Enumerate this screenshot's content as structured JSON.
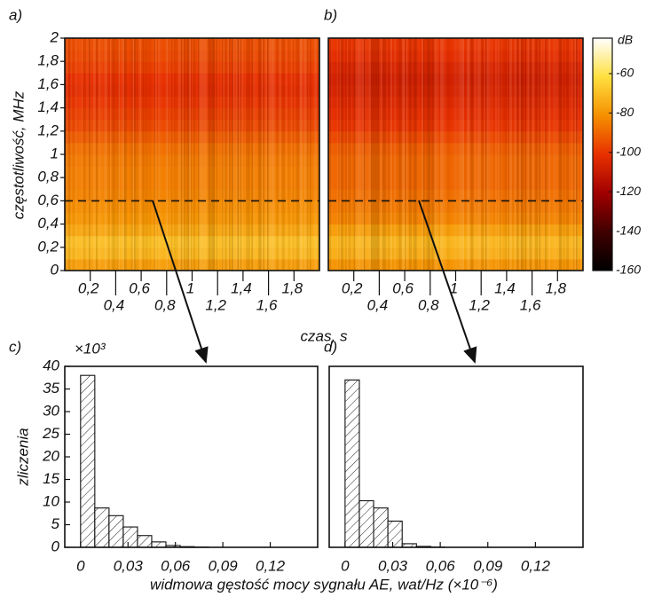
{
  "chart_data": [
    {
      "type": "spectrogram",
      "panel_label": "a)",
      "xlabel": "czas, s",
      "ylabel": "częstotliwość, MHz",
      "xlim": [
        0,
        2
      ],
      "xticks": [
        {
          "value": 0.2,
          "label": "0,2"
        },
        {
          "value": 0.4,
          "label": "0,4"
        },
        {
          "value": 0.6,
          "label": "0,6"
        },
        {
          "value": 0.8,
          "label": "0,8"
        },
        1,
        {
          "value": 1.2,
          "label": "1,2"
        },
        {
          "value": 1.4,
          "label": "1,4"
        },
        {
          "value": 1.6,
          "label": "1,6"
        },
        {
          "value": 1.8,
          "label": "1,8"
        }
      ],
      "ylim": [
        0,
        2
      ],
      "yticks": [
        0,
        {
          "value": 0.2,
          "label": "0,2"
        },
        {
          "value": 0.4,
          "label": "0,4"
        },
        {
          "value": 0.6,
          "label": "0,6"
        },
        {
          "value": 0.8,
          "label": "0,8"
        },
        1,
        {
          "value": 1.2,
          "label": "1,2"
        },
        {
          "value": 1.4,
          "label": "1,4"
        },
        {
          "value": 1.6,
          "label": "1,6"
        },
        {
          "value": 1.8,
          "label": "1,8"
        },
        2
      ],
      "y_bins": [
        0,
        0.1,
        0.2,
        0.3,
        0.4,
        0.5,
        0.6,
        0.7,
        0.8,
        0.9,
        1.0,
        1.1,
        1.2,
        1.3,
        1.4,
        1.5,
        1.6,
        1.7,
        1.8,
        1.9,
        2.0
      ],
      "levels": [
        -78,
        -72,
        -70,
        -76,
        -80,
        -82,
        -84,
        -85,
        -85,
        -86,
        -88,
        -92,
        -96,
        -98,
        -100,
        -102,
        -101,
        -98,
        -96,
        -95
      ],
      "hline": 0.6
    },
    {
      "type": "spectrogram",
      "panel_label": "b)",
      "xlim": [
        0,
        2
      ],
      "xticks": [
        {
          "value": 0.2,
          "label": "0,2"
        },
        {
          "value": 0.4,
          "label": "0,4"
        },
        {
          "value": 0.6,
          "label": "0,6"
        },
        {
          "value": 0.8,
          "label": "0,8"
        },
        1,
        {
          "value": 1.2,
          "label": "1,2"
        },
        {
          "value": 1.4,
          "label": "1,4"
        },
        {
          "value": 1.6,
          "label": "1,6"
        },
        {
          "value": 1.8,
          "label": "1,8"
        }
      ],
      "ylim": [
        0,
        2
      ],
      "y_bins": [
        0,
        0.1,
        0.2,
        0.3,
        0.4,
        0.5,
        0.6,
        0.7,
        0.8,
        0.9,
        1.0,
        1.1,
        1.2,
        1.3,
        1.4,
        1.5,
        1.6,
        1.7,
        1.8,
        1.9,
        2.0
      ],
      "levels": [
        -80,
        -74,
        -72,
        -78,
        -84,
        -86,
        -88,
        -90,
        -90,
        -90,
        -92,
        -96,
        -100,
        -102,
        -104,
        -106,
        -107,
        -105,
        -102,
        -100
      ],
      "hline": 0.6,
      "colorbar": {
        "label": "dB",
        "zlim": [
          -160,
          -42
        ],
        "zticks": [
          -60,
          -80,
          -100,
          -120,
          -140,
          -160
        ],
        "colormap": [
          "#000000",
          "#400000",
          "#a00000",
          "#e83000",
          "#f59000",
          "#ffe040",
          "#ffffff"
        ]
      }
    },
    {
      "type": "histogram",
      "panel_label": "c)",
      "ylabel": "zliczenia",
      "multiplier": "×10³",
      "bins": [
        0,
        0.009,
        0.018,
        0.027,
        0.036,
        0.045,
        0.054,
        0.063,
        0.072,
        0.081
      ],
      "counts": [
        38,
        8.7,
        7,
        4.5,
        2.6,
        1.2,
        0.4,
        0.15,
        0.05
      ],
      "xlim": [
        -0.01,
        0.15
      ],
      "xticks": [
        0,
        {
          "value": 0.03,
          "label": "0,03"
        },
        {
          "value": 0.06,
          "label": "0,06"
        },
        {
          "value": 0.09,
          "label": "0,09"
        },
        {
          "value": 0.12,
          "label": "0,12"
        }
      ],
      "ylim": [
        0,
        40
      ],
      "yticks": [
        0,
        5,
        10,
        15,
        20,
        25,
        30,
        35,
        40
      ],
      "hatch": true
    },
    {
      "type": "histogram",
      "panel_label": "d)",
      "xlabel": "widmowa gęstość mocy sygnału AE, wat/Hz (×10⁻⁶)",
      "bins": [
        0,
        0.009,
        0.018,
        0.027,
        0.036,
        0.045,
        0.054,
        0.063
      ],
      "counts": [
        37,
        10.3,
        8.7,
        5.8,
        0.8,
        0.2,
        0.05
      ],
      "xlim": [
        -0.01,
        0.15
      ],
      "xticks": [
        0,
        {
          "value": 0.03,
          "label": "0,03"
        },
        {
          "value": 0.06,
          "label": "0,06"
        },
        {
          "value": 0.09,
          "label": "0,09"
        },
        {
          "value": 0.12,
          "label": "0,12"
        }
      ],
      "ylim": [
        0,
        40
      ],
      "hatch": true
    }
  ]
}
